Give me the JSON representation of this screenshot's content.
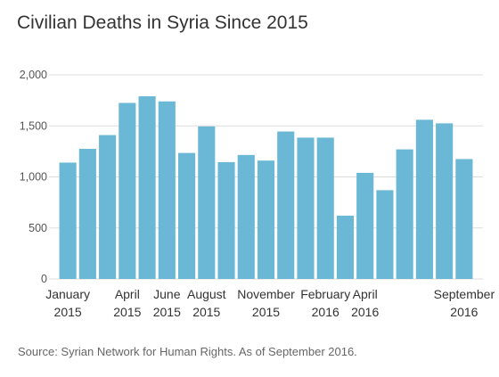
{
  "chart_data": {
    "type": "bar",
    "title": "Civilian Deaths in Syria Since 2015",
    "source": "Source: Syrian Network for Human Rights. As of September 2016.",
    "categories": [
      "Jan 2015",
      "Feb 2015",
      "Mar 2015",
      "Apr 2015",
      "May 2015",
      "Jun 2015",
      "Jul 2015",
      "Aug 2015",
      "Sep 2015",
      "Oct 2015",
      "Nov 2015",
      "Dec 2015",
      "Jan 2016",
      "Feb 2016",
      "Mar 2016",
      "Apr 2016",
      "May 2016",
      "Jun 2016",
      "Jul 2016",
      "Aug 2016",
      "Sep 2016"
    ],
    "values": [
      1140,
      1275,
      1410,
      1725,
      1790,
      1740,
      1235,
      1495,
      1145,
      1215,
      1160,
      1445,
      1385,
      1385,
      620,
      1040,
      870,
      1270,
      1560,
      1525,
      1175
    ],
    "x_tick_labels": [
      {
        "index": 0,
        "line1": "January",
        "line2": "2015"
      },
      {
        "index": 3,
        "line1": "April",
        "line2": "2015"
      },
      {
        "index": 5,
        "line1": "June",
        "line2": "2015"
      },
      {
        "index": 7,
        "line1": "August",
        "line2": "2015"
      },
      {
        "index": 10,
        "line1": "November",
        "line2": "2015"
      },
      {
        "index": 13,
        "line1": "February",
        "line2": "2016"
      },
      {
        "index": 15,
        "line1": "April",
        "line2": "2016"
      },
      {
        "index": 20,
        "line1": "September",
        "line2": "2016"
      }
    ],
    "y_ticks": [
      0,
      500,
      1000,
      1500,
      2000
    ],
    "y_tick_labels": [
      "0",
      "500",
      "1,000",
      "1,500",
      "2,000"
    ],
    "ylim": [
      0,
      2000
    ],
    "grid": true,
    "bar_color": "#6bb8d6",
    "grid_color": "#dddddd"
  }
}
